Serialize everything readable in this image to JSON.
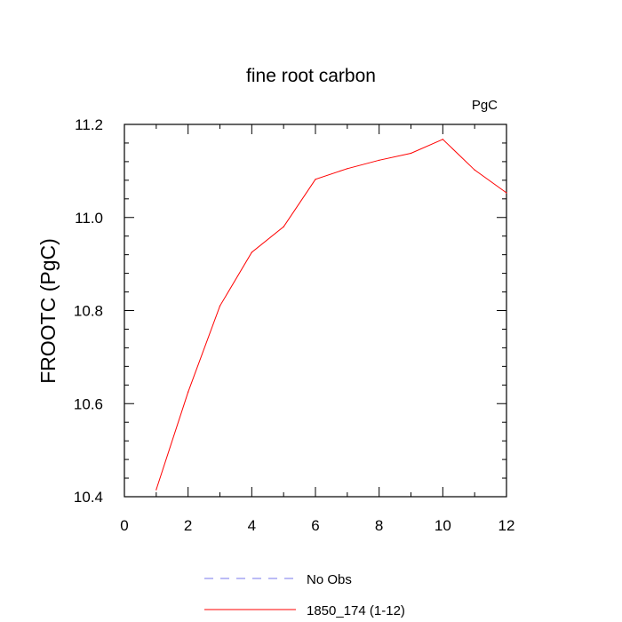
{
  "chart_data": {
    "type": "line",
    "title": "fine root carbon",
    "units_label": "PgC",
    "ylabel": "FROOTC  (PgC)",
    "xlabel": "",
    "xlim": [
      0,
      12
    ],
    "ylim": [
      10.4,
      11.2
    ],
    "x_ticks": [
      0,
      2,
      4,
      6,
      8,
      10,
      12
    ],
    "x_tick_labels": [
      "0",
      "2",
      "4",
      "6",
      "8",
      "10",
      "12"
    ],
    "y_ticks": [
      10.4,
      10.6,
      10.8,
      11.0,
      11.2
    ],
    "y_tick_labels": [
      "10.4",
      "10.6",
      "10.8",
      "11.0",
      "11.2"
    ],
    "grid": false,
    "legend_position": "bottom-center",
    "series": [
      {
        "name": "No Obs",
        "color": "#7777ee",
        "dash": "dashed",
        "x": [],
        "y": []
      },
      {
        "name": "1850_174 (1-12)",
        "color": "#ff0000",
        "dash": "solid",
        "x": [
          1,
          2,
          3,
          4,
          5,
          6,
          7,
          8,
          9,
          10,
          11,
          12
        ],
        "y": [
          10.415,
          10.625,
          10.81,
          10.925,
          10.98,
          11.082,
          11.105,
          11.123,
          11.138,
          11.168,
          11.102,
          11.053
        ]
      }
    ]
  }
}
